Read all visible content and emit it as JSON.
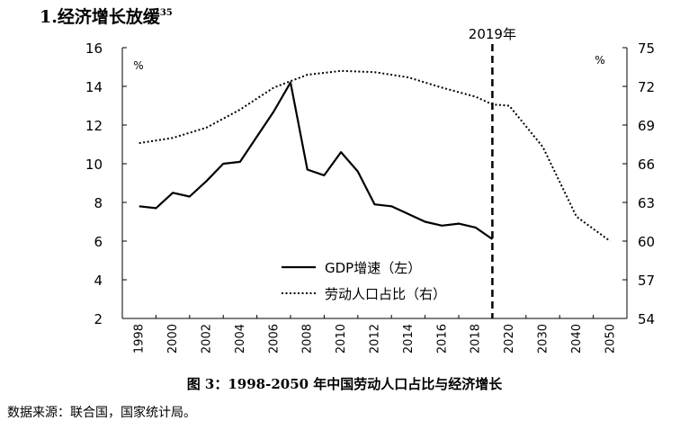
{
  "section_title": {
    "text": "1.经济增长放缓",
    "footnote": "35"
  },
  "caption": "图 3：1998-2050 年中国劳动人口占比与经济增长",
  "source": "数据来源：联合国，国家统计局。",
  "chart_data": {
    "type": "line",
    "title": "",
    "x_ticks": [
      "1998",
      "2000",
      "2002",
      "2004",
      "2006",
      "2008",
      "2010",
      "2012",
      "2014",
      "2016",
      "2018",
      "2020",
      "2030",
      "2040",
      "2050"
    ],
    "y_left": {
      "unit": "%",
      "lim": [
        2,
        16
      ],
      "ticks": [
        "2",
        "4",
        "6",
        "8",
        "10",
        "12",
        "14",
        "16"
      ]
    },
    "y_right": {
      "unit": "%",
      "lim": [
        54,
        75
      ],
      "ticks": [
        "54",
        "57",
        "60",
        "63",
        "66",
        "69",
        "72",
        "75"
      ]
    },
    "marker": {
      "x": "2019",
      "label": "2019年"
    },
    "legend": {
      "position": "bottom-center"
    },
    "series": [
      {
        "name": "GDP增速（左）",
        "axis": "left",
        "style": "solid",
        "points": [
          [
            "1998",
            7.8
          ],
          [
            "1999",
            7.7
          ],
          [
            "2000",
            8.5
          ],
          [
            "2001",
            8.3
          ],
          [
            "2002",
            9.1
          ],
          [
            "2003",
            10.0
          ],
          [
            "2004",
            10.1
          ],
          [
            "2005",
            11.4
          ],
          [
            "2006",
            12.7
          ],
          [
            "2007",
            14.2
          ],
          [
            "2008",
            9.7
          ],
          [
            "2009",
            9.4
          ],
          [
            "2010",
            10.6
          ],
          [
            "2011",
            9.6
          ],
          [
            "2012",
            7.9
          ],
          [
            "2013",
            7.8
          ],
          [
            "2014",
            7.4
          ],
          [
            "2015",
            7.0
          ],
          [
            "2016",
            6.8
          ],
          [
            "2017",
            6.9
          ],
          [
            "2018",
            6.7
          ],
          [
            "2019",
            6.1
          ]
        ]
      },
      {
        "name": "劳动人口占比（右）",
        "axis": "right",
        "style": "dotted",
        "points": [
          [
            "1998",
            67.6
          ],
          [
            "2000",
            68.0
          ],
          [
            "2002",
            68.8
          ],
          [
            "2004",
            70.2
          ],
          [
            "2006",
            71.9
          ],
          [
            "2008",
            72.9
          ],
          [
            "2010",
            73.2
          ],
          [
            "2012",
            73.1
          ],
          [
            "2014",
            72.7
          ],
          [
            "2016",
            71.9
          ],
          [
            "2018",
            71.2
          ],
          [
            "2019",
            70.6
          ],
          [
            "2020",
            70.5
          ],
          [
            "2030",
            67.3
          ],
          [
            "2040",
            61.9
          ],
          [
            "2050",
            60.0
          ]
        ]
      }
    ]
  }
}
